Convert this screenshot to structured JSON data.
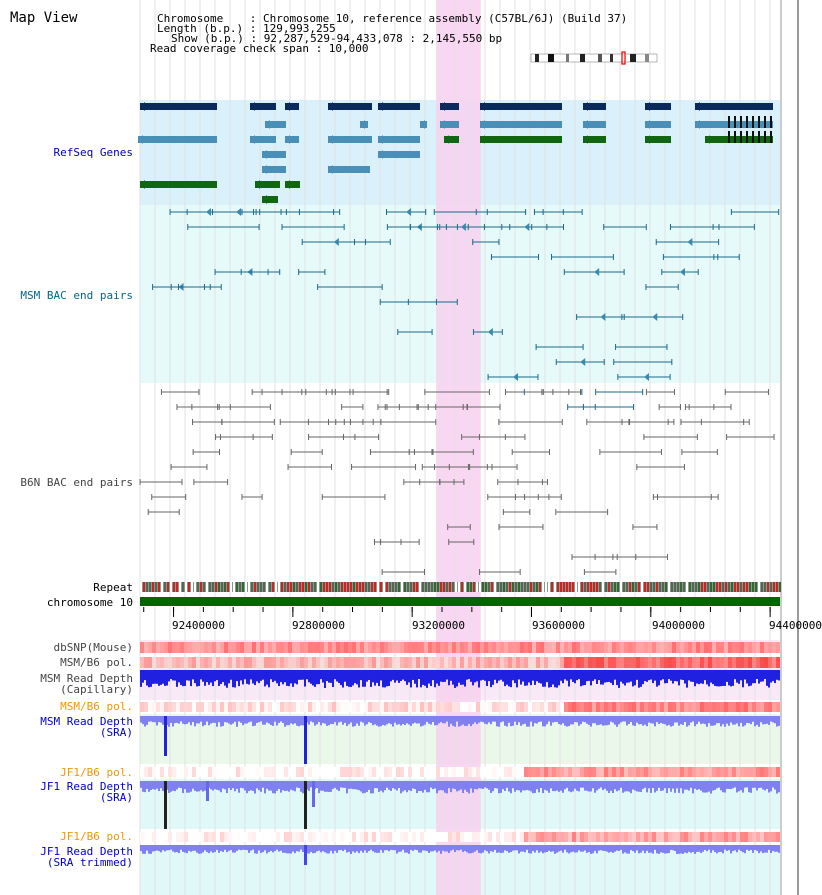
{
  "title": "Map View",
  "info": {
    "chromosome": "Chromosome    : Chromosome 10, reference assembly (C57BL/6J) (Build 37)",
    "length": "Length (b.p.) : 129,993,255",
    "show": "Show (b.p.) : 92,287,529-94,433,078 : 2,145,550 bp",
    "coverage": "Read coverage check span : 10,000"
  },
  "tracks": {
    "refseq": {
      "label": "RefSeq Genes",
      "color": "#0000aa"
    },
    "msm_bac": {
      "label": "MSM BAC end pairs",
      "color": "#006688"
    },
    "b6n_bac": {
      "label": "B6N BAC end pairs",
      "color": "#444444"
    },
    "repeat": {
      "label": "Repeat",
      "color": "#000000"
    },
    "chromosome": {
      "label": "chromosome 10",
      "color": "#000000"
    },
    "dbsnp": {
      "label": "dbSNP(Mouse)",
      "color": "#444444"
    },
    "msm_pol": {
      "label": "MSM/B6 pol.",
      "color": "#444444"
    },
    "msm_depth_cap": {
      "label": "MSM Read Depth\n(Capillary)",
      "color": "#444444"
    },
    "msm_pol2": {
      "label": "MSM/B6 pol.",
      "color": "#ee9900"
    },
    "msm_depth_sra": {
      "label": "MSM Read Depth\n(SRA)",
      "color": "#0000cc"
    },
    "jf1_pol": {
      "label": "JF1/B6 pol.",
      "color": "#ee9900"
    },
    "jf1_depth_sra": {
      "label": "JF1 Read Depth\n(SRA)",
      "color": "#0000cc"
    },
    "jf1_pol2": {
      "label": "JF1/B6 pol.",
      "color": "#ee9900"
    },
    "jf1_depth_trim": {
      "label": "JF1 Read Depth\n(SRA trimmed)",
      "color": "#0000cc"
    }
  },
  "axis": {
    "range": [
      92287529,
      94433078
    ],
    "ticks": [
      "92400000",
      "92800000",
      "93200000",
      "93600000",
      "94000000",
      "94400000"
    ],
    "tick_values": [
      92400000,
      92800000,
      93200000,
      93600000,
      94000000,
      94400000
    ]
  },
  "highlight": {
    "start": 93280000,
    "end": 93430000,
    "color": "#f8d0f0"
  },
  "colors": {
    "gene_dark": "#0a2a5c",
    "gene_mid": "#4a8fb8",
    "gene_green": "#116611",
    "msm_pair": "#1a6a8a",
    "b6n_pair": "#666666",
    "depth_blue": "#2020e0",
    "depth_light": "#8080f0"
  }
}
